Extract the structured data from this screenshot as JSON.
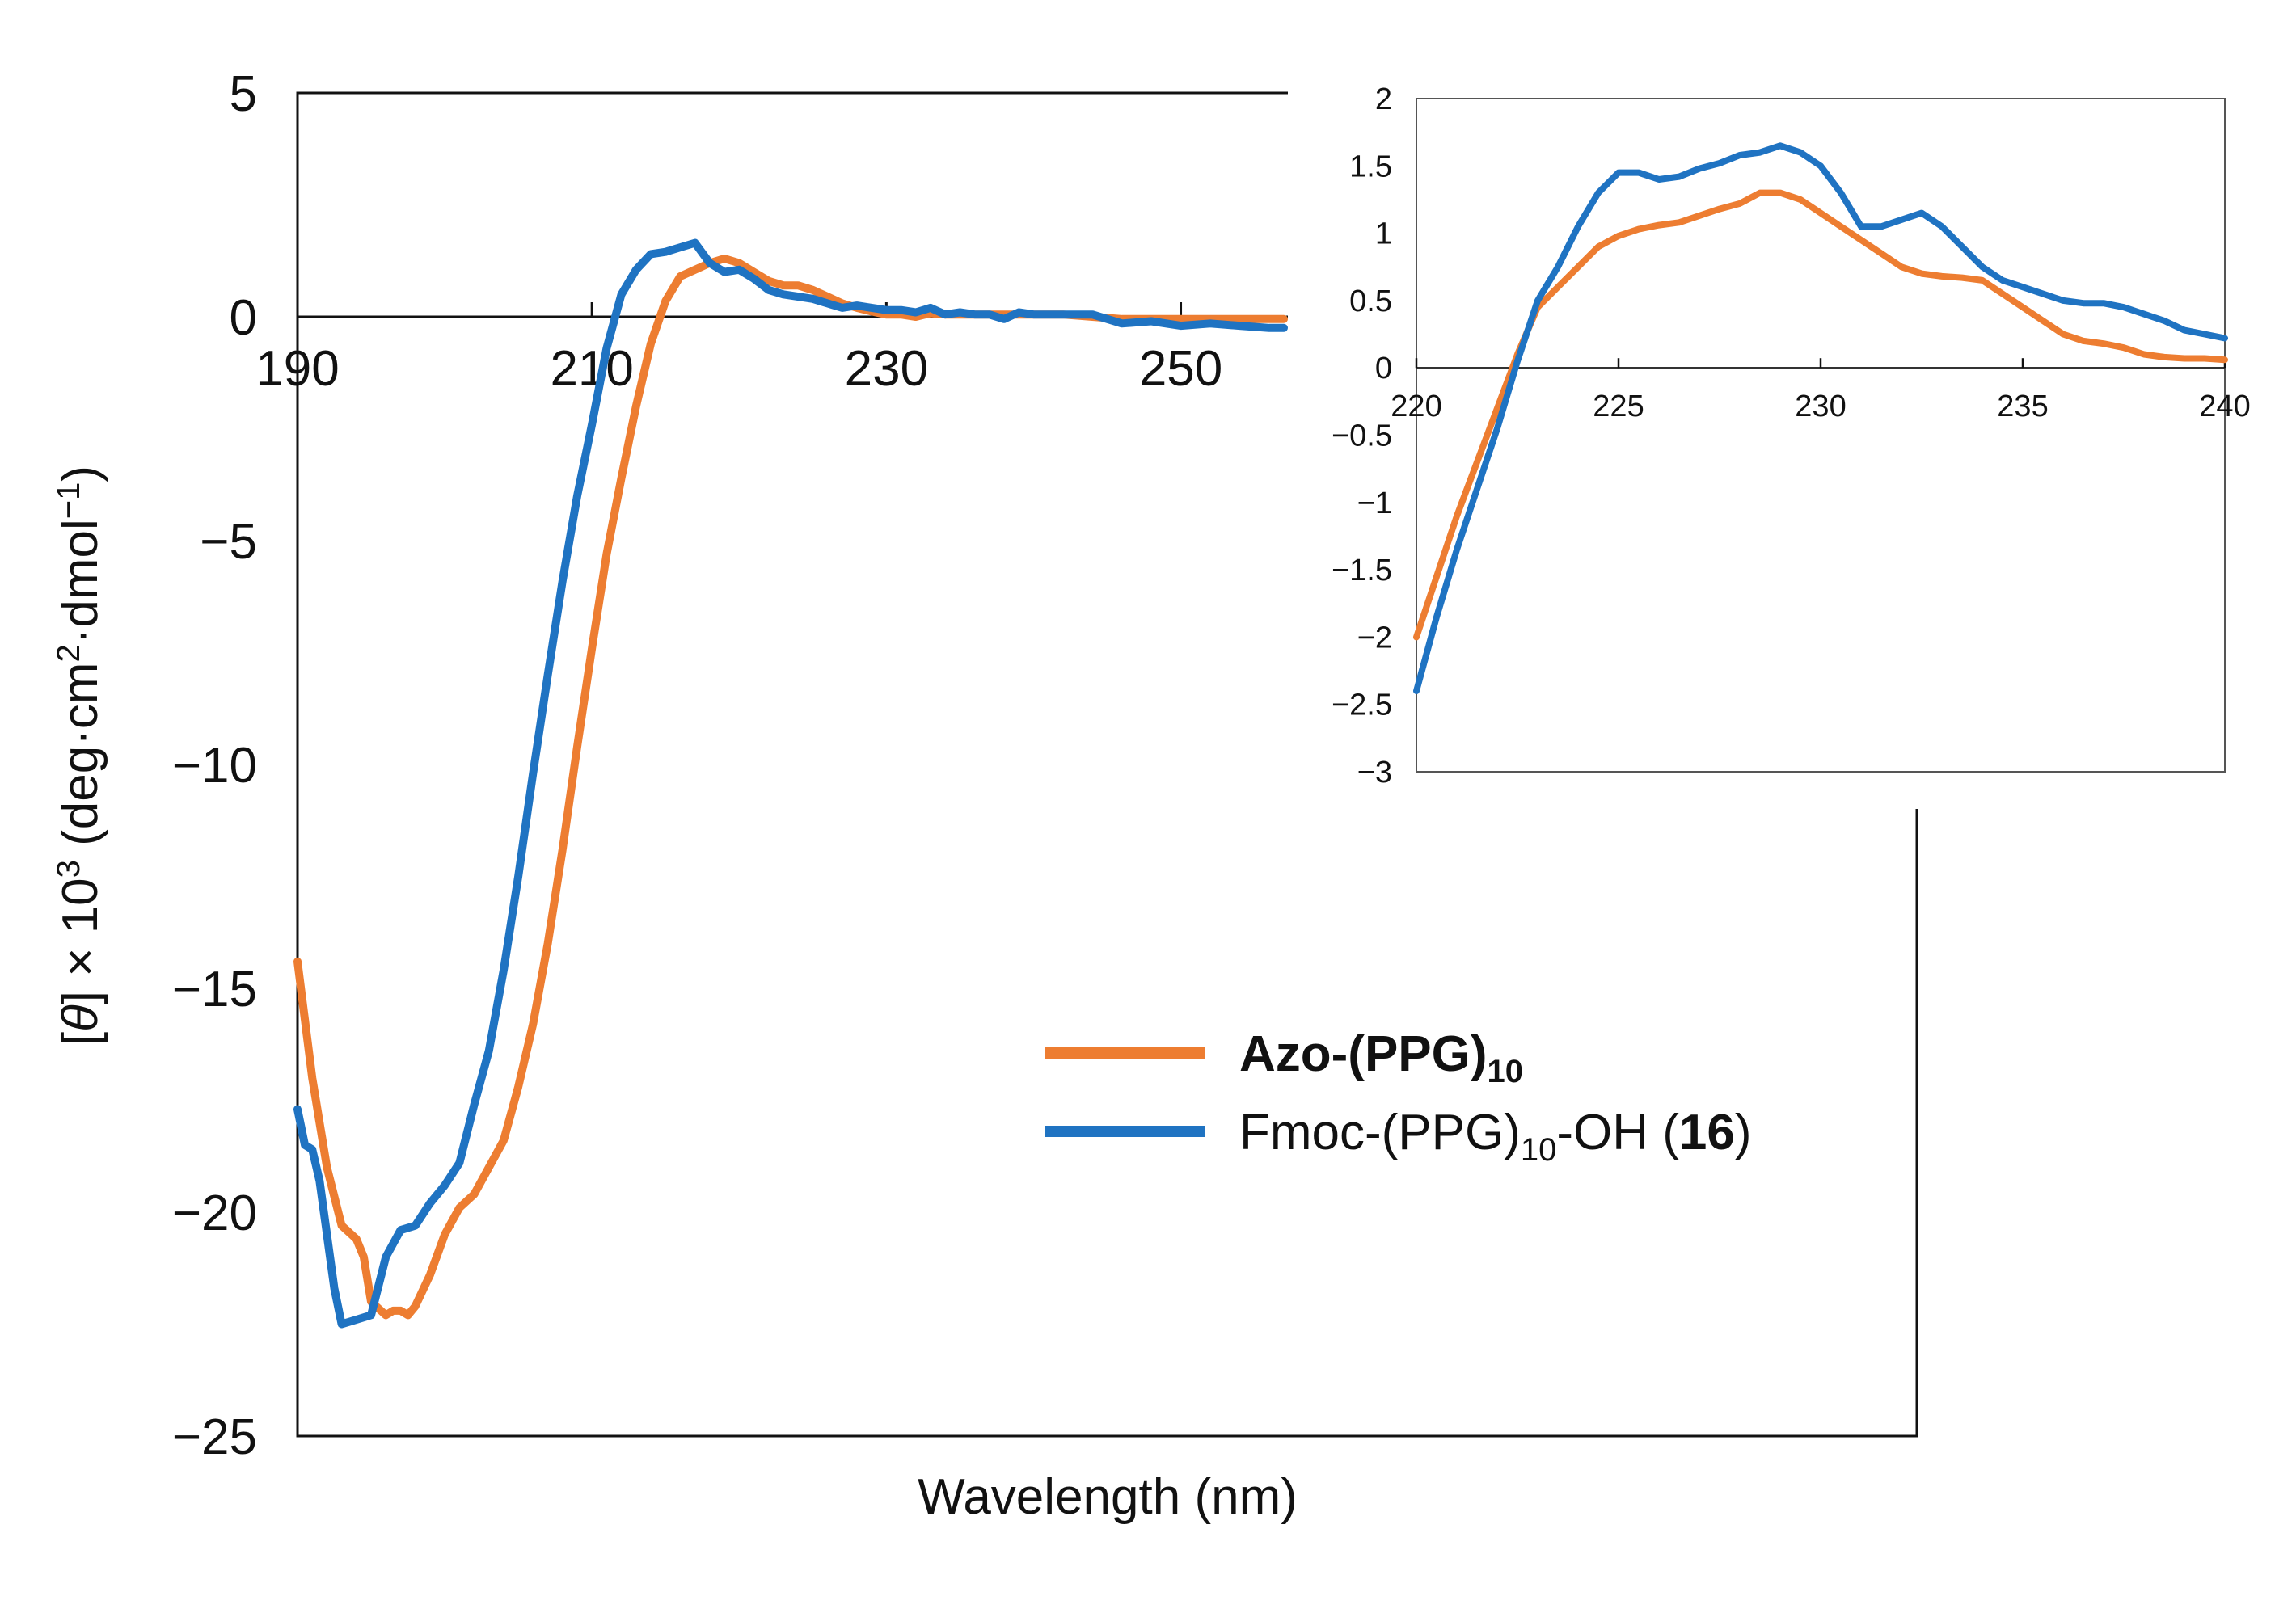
{
  "chart_data": [
    {
      "id": "main",
      "type": "line",
      "title": "",
      "xlabel": "Wavelength (nm)",
      "ylabel": "[θ] × 10³ (deg·cm²·dmol⁻¹)",
      "ylabel_parts": {
        "theta": "θ",
        "l_bracket": "[",
        "r_bracket": "]",
        "times10": " × 10",
        "exp3": "3",
        "unit1": " (deg·cm",
        "exp2": "2",
        "unit2": "·dmol",
        "expm1": "−1",
        "close": ")"
      },
      "xlim": [
        190,
        300
      ],
      "ylim": [
        -25,
        5
      ],
      "xticks": [
        "190",
        "210",
        "230",
        "250"
      ],
      "yticks": [
        "5",
        "0",
        "−5",
        "−10",
        "−15",
        "−20",
        "−25"
      ],
      "legend": {
        "placement": "lower-right",
        "entries": [
          {
            "base": "Azo-(PPG)",
            "sub": "10",
            "suffix": "",
            "bold_num": "",
            "close": "",
            "color": "#ED7D31"
          },
          {
            "base": "Fmoc-(PPG)",
            "sub": "10",
            "suffix": "-OH (",
            "bold_num": "16",
            "close": ")",
            "color": "#1F73C2"
          }
        ]
      },
      "series": [
        {
          "name": "Azo-(PPG)10",
          "color": "#ED7D31",
          "x": [
            190,
            191,
            192,
            193,
            194,
            194.5,
            195,
            196,
            196.5,
            197,
            197.5,
            198,
            199,
            200,
            201,
            202,
            203,
            204,
            205,
            206,
            207,
            208,
            209,
            210,
            211,
            212,
            213,
            214,
            215,
            216,
            217,
            218,
            219,
            220,
            221,
            222,
            223,
            224,
            225,
            226,
            227,
            228,
            229,
            230,
            231,
            232,
            233,
            234,
            235,
            236,
            237,
            238,
            239,
            240,
            242,
            244,
            246,
            248,
            250,
            252,
            254,
            256,
            257
          ],
          "y": [
            -14.4,
            -17,
            -19,
            -20.3,
            -20.6,
            -21,
            -22,
            -22.3,
            -22.2,
            -22.2,
            -22.3,
            -22.1,
            -21.4,
            -20.5,
            -19.9,
            -19.6,
            -19,
            -18.4,
            -17.2,
            -15.8,
            -14,
            -11.9,
            -9.6,
            -7.4,
            -5.3,
            -3.6,
            -2,
            -0.6,
            0.35,
            0.9,
            1.05,
            1.2,
            1.3,
            1.2,
            1.0,
            0.8,
            0.7,
            0.7,
            0.6,
            0.45,
            0.3,
            0.2,
            0.12,
            0.05,
            0.05,
            0.0,
            0.08,
            0.05,
            0.05,
            0.05,
            0.05,
            0.05,
            0.05,
            0.05,
            0.05,
            0.0,
            -0.05,
            -0.05,
            -0.05,
            -0.05,
            -0.05,
            -0.05,
            -0.05
          ]
        },
        {
          "name": "Fmoc-(PPG)10-OH (16)",
          "color": "#1F73C2",
          "x": [
            190,
            190.5,
            191,
            191.5,
            192,
            192.5,
            193,
            194,
            195,
            196,
            197,
            198,
            199,
            200,
            201,
            202,
            203,
            204,
            205,
            206,
            207,
            208,
            209,
            210,
            211,
            212,
            213,
            214,
            215,
            216,
            217,
            218,
            219,
            220,
            221,
            222,
            223,
            224,
            225,
            226,
            227,
            228,
            229,
            230,
            231,
            232,
            233,
            234,
            235,
            236,
            237,
            238,
            239,
            240,
            242,
            244,
            246,
            248,
            250,
            252,
            254,
            256,
            257
          ],
          "y": [
            -17.7,
            -18.5,
            -18.6,
            -19.3,
            -20.5,
            -21.7,
            -22.5,
            -22.4,
            -22.3,
            -21,
            -20.4,
            -20.3,
            -19.8,
            -19.4,
            -18.9,
            -17.6,
            -16.4,
            -14.6,
            -12.5,
            -10.2,
            -8,
            -5.9,
            -4,
            -2.4,
            -0.7,
            0.5,
            1.05,
            1.4,
            1.45,
            1.55,
            1.65,
            1.2,
            1.0,
            1.05,
            0.85,
            0.6,
            0.5,
            0.45,
            0.4,
            0.3,
            0.2,
            0.25,
            0.2,
            0.15,
            0.15,
            0.1,
            0.2,
            0.05,
            0.1,
            0.05,
            0.05,
            -0.05,
            0.1,
            0.05,
            0.05,
            0.05,
            -0.15,
            -0.1,
            -0.2,
            -0.15,
            -0.2,
            -0.25,
            -0.25
          ]
        }
      ]
    },
    {
      "id": "inset",
      "type": "line",
      "title": "",
      "xlabel": "",
      "ylabel": "",
      "xlim": [
        220,
        240
      ],
      "ylim": [
        -3,
        2
      ],
      "xticks": [
        "220",
        "225",
        "230",
        "235",
        "240"
      ],
      "yticks": [
        "2",
        "1.5",
        "1",
        "0.5",
        "0",
        "−0.5",
        "−1",
        "−1.5",
        "−2",
        "−2.5",
        "−3"
      ],
      "series": [
        {
          "name": "Azo-(PPG)10",
          "color": "#ED7D31",
          "x": [
            220,
            220.5,
            221,
            221.5,
            222,
            222.5,
            223,
            223.5,
            224,
            224.5,
            225,
            225.5,
            226,
            226.5,
            227,
            227.5,
            228,
            228.5,
            229,
            229.5,
            230,
            230.5,
            231,
            231.5,
            232,
            232.5,
            233,
            233.5,
            234,
            234.5,
            235,
            235.5,
            236,
            236.5,
            237,
            237.5,
            238,
            238.5,
            239,
            239.5,
            240
          ],
          "y": [
            -2.0,
            -1.55,
            -1.1,
            -0.7,
            -0.3,
            0.1,
            0.45,
            0.6,
            0.75,
            0.9,
            0.98,
            1.03,
            1.06,
            1.08,
            1.13,
            1.18,
            1.22,
            1.3,
            1.3,
            1.25,
            1.15,
            1.05,
            0.95,
            0.85,
            0.75,
            0.7,
            0.68,
            0.67,
            0.65,
            0.55,
            0.45,
            0.35,
            0.25,
            0.2,
            0.18,
            0.15,
            0.1,
            0.08,
            0.07,
            0.07,
            0.06
          ]
        },
        {
          "name": "Fmoc-(PPG)10-OH (16)",
          "color": "#1F73C2",
          "x": [
            220,
            220.5,
            221,
            221.5,
            222,
            222.5,
            223,
            223.5,
            224,
            224.5,
            225,
            225.5,
            226,
            226.5,
            227,
            227.5,
            228,
            228.5,
            229,
            229.5,
            230,
            230.5,
            231,
            231.5,
            232,
            232.5,
            233,
            233.5,
            234,
            234.5,
            235,
            235.5,
            236,
            236.5,
            237,
            237.5,
            238,
            238.5,
            239,
            239.5,
            240
          ],
          "y": [
            -2.4,
            -1.85,
            -1.35,
            -0.9,
            -0.45,
            0.05,
            0.5,
            0.75,
            1.05,
            1.3,
            1.45,
            1.45,
            1.4,
            1.42,
            1.48,
            1.52,
            1.58,
            1.6,
            1.65,
            1.6,
            1.5,
            1.3,
            1.05,
            1.05,
            1.1,
            1.15,
            1.05,
            0.9,
            0.75,
            0.65,
            0.6,
            0.55,
            0.5,
            0.48,
            0.48,
            0.45,
            0.4,
            0.35,
            0.28,
            0.25,
            0.22
          ]
        }
      ]
    }
  ]
}
